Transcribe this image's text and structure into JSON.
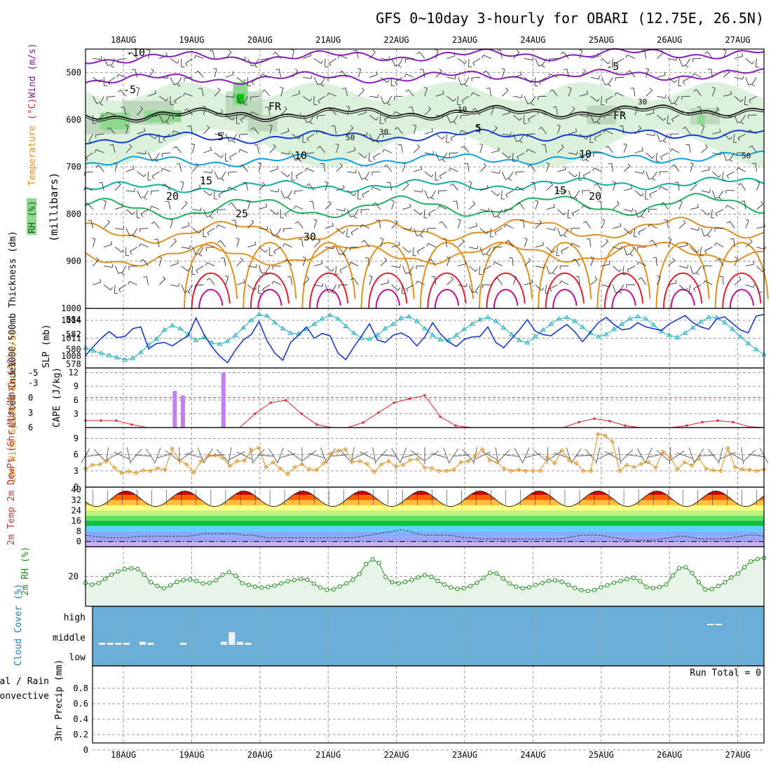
{
  "title": "GFS 0~10day 3-hourly for OBARI (12.75E, 26.5N)",
  "dates": [
    "18AUG",
    "19AUG",
    "20AUG",
    "21AUG",
    "22AUG",
    "23AUG",
    "24AUG",
    "25AUG",
    "26AUG",
    "27AUG"
  ],
  "colors": {
    "grid": "#9a9a9a",
    "purple": "#8a1fb8",
    "blue": "#1040d0",
    "cyan": "#10a0e0",
    "teal": "#10b0a0",
    "green": "#20b060",
    "orange": "#e09020",
    "red": "#e02030",
    "magenta": "#c01090",
    "rh_light": "#d8efd8",
    "rh_mid": "#8fd88f",
    "rh_dark": "#10c010",
    "cloud_bg": "#6baed6",
    "cloud_bar": "#f0f0f0",
    "rh2m_fill": "#e8f4e8",
    "rh2m_line": "#209020",
    "wind_line": "#e09020",
    "barb": "#202020",
    "thick": "#20b0c0",
    "slp": "#1030d0",
    "cape": "#c080f0",
    "li": "#e02030"
  },
  "chart_data": [
    {
      "type": "line",
      "name": "Upper air cross-section",
      "ylabel_parts": [
        "Wind",
        "(m/s)",
        "Temperature",
        "(°C)",
        "RH",
        "(%)"
      ],
      "ylabel2": "(millibars)",
      "y_ticks": [
        500,
        600,
        700,
        800,
        900,
        1000
      ],
      "ylim": [
        450,
        1000
      ],
      "isotherm_labels": [
        "-10",
        "-5",
        "-5",
        "FR",
        "FR",
        "5",
        "5",
        "10",
        "10",
        "15",
        "15",
        "20",
        "20",
        "25",
        "30"
      ],
      "rh_labels": [
        "10",
        "30",
        "30",
        "50",
        "50"
      ],
      "isotherm_levels_mb": {
        "-10": 470,
        "-5": 515,
        "0": 590,
        "5": 640,
        "10": 690,
        "15": 745,
        "20": 790,
        "25": 840,
        "30": 890
      }
    },
    {
      "type": "line",
      "name": "Thickness / SLP",
      "ylabel_left": "1000-500mb Thickness (dm)",
      "ylabel_right": "SLP (mb)",
      "left_ticks": [
        578,
        580,
        582,
        584
      ],
      "right_ticks": [
        1008,
        1011,
        1014
      ],
      "thickness_dm": [
        580.2,
        579.8,
        579.5,
        579.2,
        578.9,
        578.6,
        578.8,
        579.6,
        580.6,
        581.4,
        582.6,
        583.2,
        582.8,
        582.0,
        581.2,
        581.6,
        580.9,
        580.7,
        581.1,
        581.9,
        582.9,
        583.9,
        584.7,
        584.5,
        583.6,
        582.8,
        582.2,
        582.1,
        582.7,
        583.4,
        584.1,
        584.6,
        584.1,
        583.1,
        582.2,
        581.5,
        581.4,
        581.9,
        582.8,
        583.4,
        584.2,
        584.4,
        583.8,
        582.8,
        581.9,
        581.3,
        581.2,
        581.9,
        582.7,
        583.4,
        584.0,
        584.3,
        583.8,
        582.9,
        582.0,
        581.2,
        580.9,
        581.7,
        582.6,
        583.4,
        584.1,
        584.3,
        583.8,
        583.0,
        582.2,
        581.7,
        582.0,
        582.7,
        583.4,
        584.1,
        584.4,
        584.1,
        583.3,
        582.4,
        581.9,
        581.6,
        582.2,
        582.9,
        583.7,
        584.3,
        584.3,
        583.6,
        582.7,
        581.7,
        580.8,
        580.0,
        579.3
      ],
      "slp_mb": [
        1008.1,
        1009.6,
        1011.0,
        1012.1,
        1011.1,
        1011.3,
        1012.6,
        1012.9,
        1009.2,
        1010.1,
        1010.3,
        1009.7,
        1010.6,
        1011.4,
        1014.4,
        1011.7,
        1009.6,
        1008.0,
        1006.9,
        1009.0,
        1010.7,
        1011.6,
        1013.8,
        1010.6,
        1008.5,
        1007.3,
        1010.3,
        1011.5,
        1012.9,
        1011.0,
        1011.8,
        1011.4,
        1008.5,
        1007.4,
        1009.5,
        1011.4,
        1013.4,
        1010.7,
        1010.3,
        1011.5,
        1011.9,
        1011.2,
        1009.7,
        1011.2,
        1013.6,
        1011.7,
        1010.4,
        1009.6,
        1010.8,
        1011.2,
        1011.3,
        1012.9,
        1010.3,
        1009.4,
        1010.9,
        1012.4,
        1014.1,
        1012.2,
        1011.6,
        1011.4,
        1012.4,
        1013.3,
        1012.1,
        1010.4,
        1012.0,
        1013.6,
        1014.5,
        1013.3,
        1012.4,
        1012.6,
        1013.6,
        1012.9,
        1012.6,
        1012.3,
        1013.4,
        1014.1,
        1014.8,
        1013.6,
        1012.9,
        1012.5,
        1014.2,
        1014.6,
        1013.5,
        1012.4,
        1011.9,
        1014.7,
        1015.0
      ]
    },
    {
      "type": "bar",
      "name": "CAPE / Lifted Index",
      "ylabel_left": "Lifted Index",
      "ylabel_right": "CAPE (J/kg)",
      "li_ticks": [
        -3,
        0,
        3,
        6
      ],
      "li_top_tick": "-5",
      "cape_ticks": [
        3,
        6,
        9,
        12
      ],
      "cape_bars": [
        {
          "t": 11,
          "v": 8
        },
        {
          "t": 12,
          "v": 7
        },
        {
          "t": 17,
          "v": 12
        }
      ],
      "lifted_index": [
        4.6,
        4.6,
        4.6,
        5.4,
        6.0,
        6.0,
        6.0,
        6.0,
        6.0,
        6.0,
        6.0,
        3.2,
        1.0,
        0.5,
        3.2,
        5.4,
        6.0,
        6.0,
        5.0,
        3.0,
        1.0,
        0.2,
        -0.5,
        3.8,
        5.6,
        6.0,
        6.0,
        6.0,
        6.0,
        6.0,
        6.0,
        6.0,
        4.9,
        4.2,
        4.7,
        5.6,
        6.0,
        6.0,
        6.0,
        5.6,
        4.9,
        4.6,
        4.9,
        5.8,
        6.0
      ]
    },
    {
      "type": "line",
      "name": "10m Wind",
      "ylabel": "10m Wind Speed & Barbs (m/s)",
      "y_ticks": [
        0,
        3,
        6,
        9
      ],
      "wind_speed": [
        3.4,
        4.1,
        4.2,
        5.0,
        3.6,
        2.6,
        2.9,
        2.6,
        3.1,
        3.0,
        3.5,
        3.2,
        7.1,
        5.0,
        4.2,
        2.7,
        4.8,
        5.8,
        5.9,
        5.4,
        3.9,
        4.8,
        4.9,
        6.8,
        7.3,
        3.7,
        4.6,
        3.4,
        2.4,
        3.7,
        4.2,
        3.3,
        3.2,
        4.4,
        6.2,
        6.7,
        7.0,
        4.7,
        4.8,
        4.3,
        2.8,
        4.2,
        4.8,
        3.8,
        4.1,
        5.0,
        5.2,
        3.6,
        3.5,
        3.0,
        3.0,
        3.2,
        4.6,
        4.8,
        5.8,
        7.0,
        5.0,
        4.6,
        3.4,
        3.0,
        3.2,
        3.0,
        3.0,
        3.0,
        5.5,
        4.4,
        6.8,
        5.0,
        4.4,
        3.0,
        3.0,
        9.8,
        9.5,
        8.4,
        3.0,
        4.1,
        3.7,
        4.3,
        4.6,
        3.6,
        6.5,
        5.6,
        3.3,
        4.6,
        4.0,
        5.3,
        3.4,
        3.1,
        3.0,
        7.2,
        3.7,
        3.3,
        3.2,
        3.0,
        3.3
      ]
    },
    {
      "type": "area",
      "name": "2m Temp / DewPt",
      "ylabel": "2m Temp 2m DewPt (6hr Min/Max) (°C)",
      "y_ticks": [
        0,
        8,
        16,
        24,
        32,
        40
      ],
      "temp_min": 27,
      "temp_max": 39,
      "dewpoint": [
        5,
        4,
        3.5,
        3,
        3,
        3,
        3.5,
        4,
        4,
        4,
        4,
        4,
        4,
        4,
        5,
        6,
        6,
        6,
        6,
        6,
        5,
        5,
        4,
        3,
        3,
        3,
        3,
        3,
        3,
        3,
        3,
        3,
        3,
        3,
        3,
        4,
        5,
        6,
        7,
        8,
        9,
        8,
        6,
        5,
        5,
        5,
        5,
        4,
        3,
        3,
        2,
        2,
        2,
        2,
        2,
        2,
        2,
        2,
        2,
        2,
        2,
        3,
        4,
        5,
        5,
        5,
        4,
        3,
        2,
        1,
        1,
        1,
        1,
        2,
        3,
        4,
        4,
        3,
        2,
        2,
        2,
        2,
        3,
        4,
        5,
        5,
        4
      ]
    },
    {
      "type": "line",
      "name": "2m RH",
      "ylabel": "2m RH (%)",
      "y_ticks": [
        20
      ],
      "rh": [
        15.7,
        14.5,
        15.6,
        18.5,
        21.2,
        23.4,
        24.9,
        25.5,
        25.1,
        21.1,
        16.1,
        13.7,
        12.1,
        14.0,
        16.4,
        17.6,
        18.0,
        16.9,
        15.4,
        15.7,
        17.4,
        21.1,
        22.9,
        20.5,
        15.6,
        14.4,
        13.2,
        12.6,
        13.0,
        13.9,
        15.3,
        16.8,
        17.7,
        18.4,
        17.9,
        15.2,
        12.6,
        11.1,
        11.4,
        13.3,
        15.4,
        17.9,
        21.7,
        28.3,
        31.5,
        29.1,
        19.6,
        16.2,
        15.3,
        16.4,
        17.7,
        19.3,
        20.9,
        19.8,
        17.0,
        14.6,
        12.7,
        11.7,
        12.2,
        13.5,
        15.8,
        19.1,
        22.4,
        22.1,
        18.7,
        15.3,
        13.2,
        12.2,
        12.8,
        14.3,
        15.6,
        17.1,
        17.4,
        16.5,
        14.4,
        12.3,
        10.9,
        10.4,
        10.9,
        12.8,
        14.1,
        15.8,
        16.9,
        18.2,
        19.1,
        16.8,
        13.0,
        12.2,
        12.9,
        14.7,
        20.6,
        25.7,
        26.2,
        22.3,
        16.2,
        11.3,
        11.6,
        13.6,
        16.1,
        19.3,
        21.9,
        26.3,
        30.1,
        31.7,
        32.5
      ]
    },
    {
      "type": "bar",
      "name": "Cloud Cover",
      "ylabel": "Cloud Cover (%)",
      "levels": [
        "high",
        "middle",
        "low"
      ],
      "low_bars": [
        {
          "t": 2,
          "v": 0.1
        },
        {
          "t": 3,
          "v": 0.1
        },
        {
          "t": 4,
          "v": 0.1
        },
        {
          "t": 5,
          "v": 0.1
        },
        {
          "t": 7,
          "v": 0.15
        },
        {
          "t": 8,
          "v": 0.1
        },
        {
          "t": 12,
          "v": 0.1
        },
        {
          "t": 17,
          "v": 0.15
        },
        {
          "t": 18,
          "v": 0.6
        },
        {
          "t": 19,
          "v": 0.15
        },
        {
          "t": 20,
          "v": 0.1
        }
      ],
      "high_bars": [
        {
          "t": 77,
          "v": 0.05
        },
        {
          "t": 78,
          "v": 0.05
        }
      ]
    },
    {
      "type": "bar",
      "name": "3hr Precip",
      "ylabel_left": "3hr Precip (mm)",
      "legend": [
        "Total / Rain",
        "Convective"
      ],
      "run_total": "Run Total = 0",
      "y_ticks": [
        "0",
        "0.2",
        "0.4",
        "0.6",
        "0.8"
      ],
      "ylim": [
        0,
        1
      ]
    }
  ]
}
